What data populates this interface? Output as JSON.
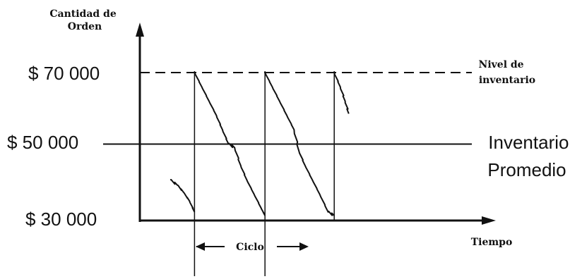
{
  "chart_data": {
    "type": "line",
    "title": "",
    "ylabel": "Cantidad de Orden",
    "xlabel": "Tiempo",
    "y_ticks": [
      {
        "value": 70000,
        "label": "$ 70 000"
      },
      {
        "value": 50000,
        "label": "$ 50 000"
      },
      {
        "value": 30000,
        "label": "$ 30 000"
      }
    ],
    "ylim": [
      30000,
      70000
    ],
    "reference_lines": [
      {
        "value": 70000,
        "style": "dashed",
        "label": "Nivel de inventario"
      },
      {
        "value": 50000,
        "style": "solid",
        "label": "Inventario Promedio"
      }
    ],
    "cycle_label": "Ciclo",
    "series": [
      {
        "points": [
          [
            0.0,
            40000
          ],
          [
            0.3,
            38500
          ],
          [
            0.55,
            36500
          ],
          [
            0.8,
            34000
          ],
          [
            1.0,
            31000
          ],
          [
            1.0,
            70000
          ],
          [
            1.3,
            66000
          ],
          [
            1.6,
            62000
          ],
          [
            1.9,
            58000
          ],
          [
            2.15,
            54000
          ],
          [
            2.4,
            50000
          ],
          [
            2.65,
            49000
          ],
          [
            2.9,
            44000
          ],
          [
            3.15,
            40000
          ],
          [
            3.45,
            36000
          ],
          [
            3.75,
            32000
          ],
          [
            3.9,
            30000
          ],
          [
            3.9,
            70000
          ],
          [
            4.2,
            66000
          ],
          [
            4.5,
            62000
          ],
          [
            4.8,
            58000
          ],
          [
            5.1,
            54000
          ],
          [
            5.3,
            48000
          ],
          [
            5.55,
            44000
          ],
          [
            5.85,
            40000
          ],
          [
            6.15,
            36000
          ],
          [
            6.5,
            31000
          ],
          [
            6.75,
            30000
          ],
          [
            6.75,
            70000
          ],
          [
            7.0,
            66000
          ],
          [
            7.2,
            62000
          ],
          [
            7.35,
            58500
          ]
        ]
      }
    ],
    "legend": "none",
    "grid": false
  }
}
